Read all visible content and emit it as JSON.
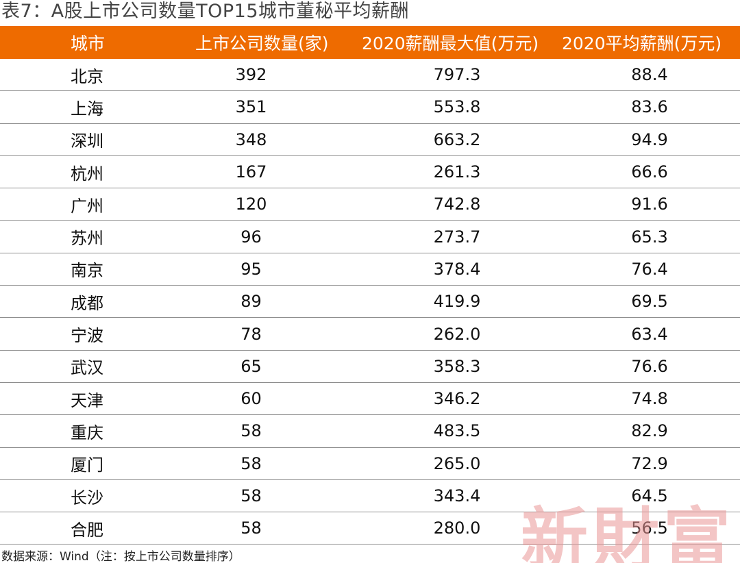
{
  "title": "表7：A股上市公司数量TOP15城市董秘平均薪酬",
  "table": {
    "headers": [
      "城市",
      "上市公司数量(家)",
      "2020薪酬最大值(万元)",
      "2020平均薪酬(万元)"
    ],
    "rows": [
      [
        "北京",
        "392",
        "797.3",
        "88.4"
      ],
      [
        "上海",
        "351",
        "553.8",
        "83.6"
      ],
      [
        "深圳",
        "348",
        "663.2",
        "94.9"
      ],
      [
        "杭州",
        "167",
        "261.3",
        "66.6"
      ],
      [
        "广州",
        "120",
        "742.8",
        "91.6"
      ],
      [
        "苏州",
        "96",
        "273.7",
        "65.3"
      ],
      [
        "南京",
        "95",
        "378.4",
        "76.4"
      ],
      [
        "成都",
        "89",
        "419.9",
        "69.5"
      ],
      [
        "宁波",
        "78",
        "262.0",
        "63.4"
      ],
      [
        "武汉",
        "65",
        "358.3",
        "76.6"
      ],
      [
        "天津",
        "60",
        "346.2",
        "74.8"
      ],
      [
        "重庆",
        "58",
        "483.5",
        "82.9"
      ],
      [
        "厦门",
        "58",
        "265.0",
        "72.9"
      ],
      [
        "长沙",
        "58",
        "343.4",
        "64.5"
      ],
      [
        "合肥",
        "58",
        "280.0",
        "56.5"
      ]
    ]
  },
  "footnote": "数据来源：Wind（注：按上市公司数量排序）",
  "watermark": "新財富",
  "colors": {
    "header_bg": "#ee6b00",
    "header_text": "#ffffff",
    "watermark": "#e99696"
  }
}
